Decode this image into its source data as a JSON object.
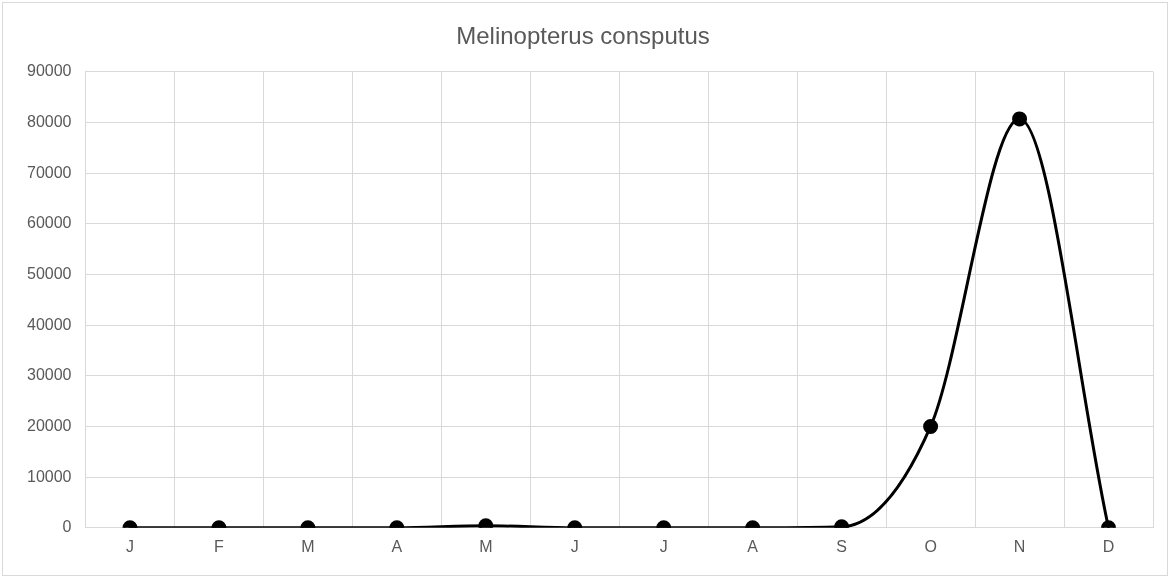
{
  "chart_data": {
    "type": "line",
    "title": "Melinopterus consputus",
    "categories": [
      "J",
      "F",
      "M",
      "A",
      "M",
      "J",
      "J",
      "A",
      "S",
      "O",
      "N",
      "D"
    ],
    "series": [
      {
        "color": "#000000",
        "values": [
          0,
          0,
          0,
          0,
          400,
          0,
          0,
          0,
          200,
          20000,
          80700,
          0
        ]
      }
    ],
    "ylim": [
      0,
      90000
    ],
    "yticks": [
      0,
      10000,
      20000,
      30000,
      40000,
      50000,
      60000,
      70000,
      80000,
      90000
    ],
    "grid": true,
    "legend": false,
    "marker": "circle",
    "line_style": "solid"
  }
}
